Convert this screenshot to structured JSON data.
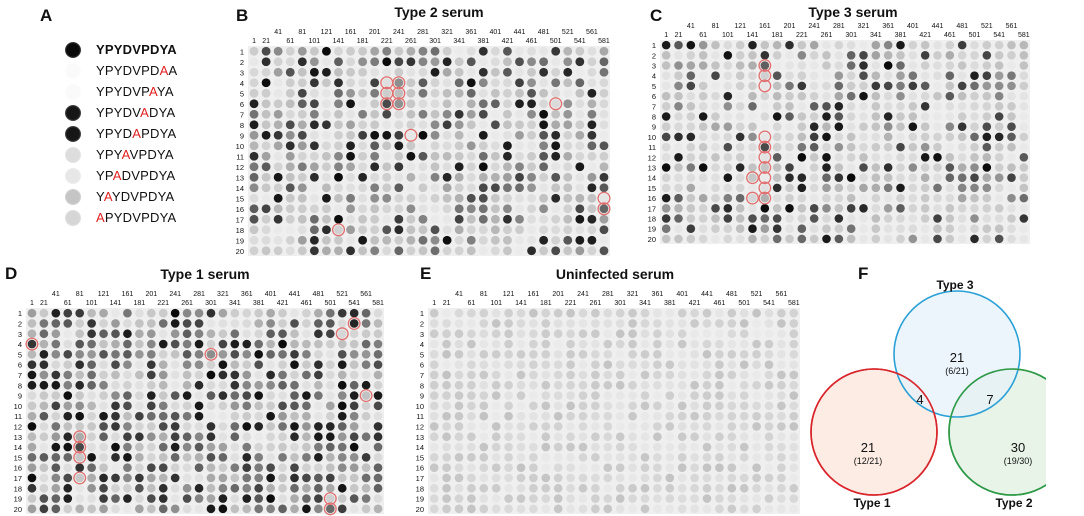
{
  "chart_data": [
    {
      "type": "other",
      "panel": "A",
      "peptides": [
        {
          "text": "YPYDVPDYA",
          "mutation_index": null,
          "intensity": 1.0
        },
        {
          "text": "YPYDVPDAA",
          "mutation_index": 7,
          "intensity": 0.0
        },
        {
          "text": "YPYDVPAYA",
          "mutation_index": 6,
          "intensity": 0.0
        },
        {
          "text": "YPYDVADYA",
          "mutation_index": 5,
          "intensity": 0.95
        },
        {
          "text": "YPYDAPDYA",
          "mutation_index": 4,
          "intensity": 0.95
        },
        {
          "text": "YPYAVPDYA",
          "mutation_index": 3,
          "intensity": 0.12
        },
        {
          "text": "YPADVPDYA",
          "mutation_index": 2,
          "intensity": 0.08
        },
        {
          "text": "YAYDVPDYA",
          "mutation_index": 1,
          "intensity": 0.22
        },
        {
          "text": "APYDVPDYA",
          "mutation_index": 0,
          "intensity": 0.15
        }
      ]
    },
    {
      "type": "heatmap",
      "panel": "B",
      "title": "Type 2 serum",
      "col_labels_top": [
        "41",
        "81",
        "121",
        "161",
        "201",
        "241",
        "281",
        "321",
        "361",
        "401",
        "441",
        "481",
        "521",
        "561"
      ],
      "col_labels_bottom": [
        "1",
        "21",
        "61",
        "101",
        "141",
        "181",
        "221",
        "261",
        "301",
        "341",
        "381",
        "421",
        "461",
        "501",
        "541",
        "581"
      ],
      "row_labels": [
        "1",
        "2",
        "3",
        "4",
        "5",
        "6",
        "7",
        "8",
        "9",
        "10",
        "11",
        "12",
        "13",
        "14",
        "15",
        "16",
        "17",
        "18",
        "19",
        "20"
      ],
      "columns": 30,
      "rows": 20,
      "seed": 2,
      "density": 0.55,
      "highlighted": [
        [
          4,
          12
        ],
        [
          5,
          12
        ],
        [
          6,
          12
        ],
        [
          4,
          13
        ],
        [
          5,
          13
        ],
        [
          6,
          13
        ],
        [
          6,
          26
        ],
        [
          9,
          14
        ],
        [
          15,
          40
        ],
        [
          16,
          40
        ],
        [
          18,
          8
        ]
      ]
    },
    {
      "type": "heatmap",
      "panel": "C",
      "title": "Type 3 serum",
      "col_labels_top": [
        "41",
        "81",
        "121",
        "161",
        "201",
        "241",
        "281",
        "321",
        "361",
        "401",
        "441",
        "481",
        "521",
        "561"
      ],
      "col_labels_bottom": [
        "1",
        "21",
        "61",
        "101",
        "141",
        "181",
        "221",
        "261",
        "301",
        "341",
        "381",
        "421",
        "461",
        "501",
        "541",
        "581"
      ],
      "row_labels": [
        "1",
        "2",
        "3",
        "4",
        "5",
        "6",
        "7",
        "8",
        "9",
        "10",
        "11",
        "12",
        "13",
        "14",
        "15",
        "16",
        "17",
        "18",
        "19",
        "20"
      ],
      "columns": 30,
      "rows": 20,
      "seed": 3,
      "density": 0.45,
      "highlighted": [
        [
          3,
          9
        ],
        [
          4,
          9
        ],
        [
          5,
          9
        ],
        [
          10,
          9
        ],
        [
          11,
          9
        ],
        [
          12,
          9
        ],
        [
          13,
          9
        ],
        [
          14,
          9
        ],
        [
          15,
          9
        ],
        [
          16,
          9
        ],
        [
          14,
          8
        ],
        [
          16,
          8
        ]
      ]
    },
    {
      "type": "heatmap",
      "panel": "D",
      "title": "Type 1 serum",
      "col_labels_top": [
        "41",
        "81",
        "121",
        "161",
        "201",
        "241",
        "281",
        "321",
        "361",
        "401",
        "441",
        "481",
        "521",
        "561"
      ],
      "col_labels_bottom": [
        "1",
        "21",
        "61",
        "101",
        "141",
        "181",
        "221",
        "261",
        "301",
        "341",
        "381",
        "421",
        "461",
        "501",
        "541",
        "581"
      ],
      "row_labels": [
        "1",
        "2",
        "3",
        "4",
        "5",
        "6",
        "7",
        "8",
        "9",
        "10",
        "11",
        "12",
        "13",
        "14",
        "15",
        "16",
        "17",
        "18",
        "19",
        "20"
      ],
      "columns": 30,
      "rows": 20,
      "seed": 1,
      "density": 0.85,
      "highlighted": [
        [
          4,
          1
        ],
        [
          13,
          5
        ],
        [
          14,
          5
        ],
        [
          15,
          5
        ],
        [
          17,
          5
        ],
        [
          5,
          16
        ],
        [
          3,
          27
        ],
        [
          2,
          28
        ],
        [
          9,
          29
        ],
        [
          19,
          26
        ],
        [
          20,
          26
        ]
      ]
    },
    {
      "type": "heatmap",
      "panel": "E",
      "title": "Uninfected serum",
      "col_labels_top": [
        "41",
        "81",
        "121",
        "161",
        "201",
        "241",
        "281",
        "321",
        "361",
        "401",
        "441",
        "481",
        "521",
        "561"
      ],
      "col_labels_bottom": [
        "1",
        "21",
        "61",
        "101",
        "141",
        "181",
        "221",
        "261",
        "301",
        "341",
        "381",
        "421",
        "461",
        "501",
        "541",
        "581"
      ],
      "row_labels": [
        "1",
        "2",
        "3",
        "4",
        "5",
        "6",
        "7",
        "8",
        "9",
        "10",
        "11",
        "12",
        "13",
        "14",
        "15",
        "16",
        "17",
        "18",
        "19",
        "20"
      ],
      "columns": 30,
      "rows": 20,
      "seed": 5,
      "density": 0.08,
      "highlighted": []
    },
    {
      "type": "venn",
      "panel": "F",
      "sets": [
        {
          "name": "Type 3",
          "color": "#2aa0d6",
          "fill": "#e6f1fa"
        },
        {
          "name": "Type 1",
          "color": "#d9262c",
          "fill": "#fbe9df"
        },
        {
          "name": "Type 2",
          "color": "#2e9a47",
          "fill": "#e5f2e4"
        }
      ],
      "regions": [
        {
          "sets": [
            "Type 3"
          ],
          "value": "21",
          "sub": "(6/21)"
        },
        {
          "sets": [
            "Type 1"
          ],
          "value": "21",
          "sub": "(12/21)"
        },
        {
          "sets": [
            "Type 2"
          ],
          "value": "30",
          "sub": "(19/30)"
        },
        {
          "sets": [
            "Type 1",
            "Type 3"
          ],
          "value": "4",
          "sub": ""
        },
        {
          "sets": [
            "Type 2",
            "Type 3"
          ],
          "value": "7",
          "sub": ""
        }
      ]
    }
  ],
  "panel_letters": {
    "a": "A",
    "b": "B",
    "c": "C",
    "d": "D",
    "e": "E",
    "f": "F"
  },
  "colors": {
    "highlight": "#e07070",
    "mutation": "#e02020"
  }
}
